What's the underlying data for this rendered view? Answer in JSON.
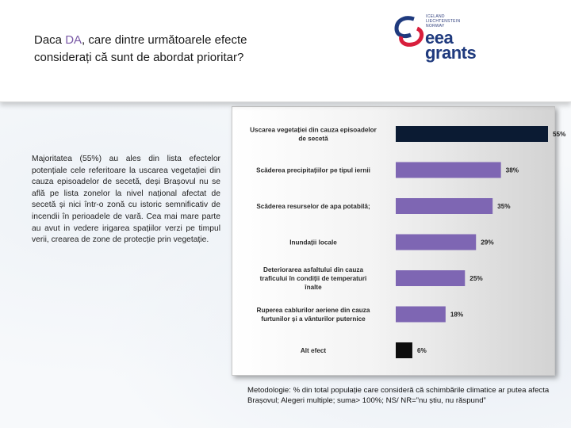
{
  "header": {
    "title_part1": "Daca ",
    "title_highlight": "DA",
    "title_part2": ", care dintre următoarele efecte considerați că sunt de abordat prioritar?",
    "logo": {
      "small_lines": [
        "ICELAND",
        "LIECHTENSTEIN",
        "NORWAY"
      ],
      "main_lines": [
        "eea",
        "grants"
      ],
      "icon": "eea-grants-logo"
    }
  },
  "summary": "Majoritatea (55%) au ales din lista efectelor potențiale cele referitoare la uscarea vegetației din cauza episoadelor de secetă, deși Brașovul nu se află pe lista zonelor la nivel național afectat de secetă și nici într-o zonă cu istoric semnificativ de incendii în perioadele de vară. Cea mai mare parte au avut in vedere irigarea spațiilor verzi pe timpul verii, crearea de zone de protecție prin vegetație.",
  "methodology": "Metodologie: % din total populație care consideră că schimbările climatice ar putea afecta Brașovul; Alegeri multiple; suma> 100%; NS/ NR=”nu știu, nu răspund”",
  "chart_data": {
    "type": "bar",
    "orientation": "horizontal",
    "title": "",
    "xlabel": "",
    "ylabel": "",
    "xlim": [
      0,
      55
    ],
    "grid": false,
    "categories": [
      "Uscarea vegetației din cauza episoadelor de secetă",
      "Scăderea precipitațiilor pe tipul iernii",
      "Scăderea resurselor de apa potabilă;",
      "Inundații locale",
      "Deteriorarea asfaltului din cauza traficului în condiții de temperaturi înalte",
      "Ruperea cablurilor aeriene din cauza furtunilor și a vânturilor puternice",
      "Alt efect"
    ],
    "category_lines": [
      [
        "Uscarea vegetației din cauza episoadelor",
        "de secetă"
      ],
      [
        "Scăderea precipitațiilor pe tipul iernii"
      ],
      [
        "Scăderea resurselor de apa potabilă;"
      ],
      [
        "Inundații locale"
      ],
      [
        "Deteriorarea asfaltului din cauza",
        "traficului în condiții de temperaturi",
        "înalte"
      ],
      [
        "Ruperea cablurilor aeriene din cauza",
        "furtunilor și a vânturilor puternice"
      ],
      [
        "Alt efect"
      ]
    ],
    "values": [
      55,
      38,
      35,
      29,
      25,
      18,
      6
    ],
    "value_labels": [
      "55%",
      "38%",
      "35%",
      "29%",
      "25%",
      "18%",
      "6%"
    ],
    "colors": [
      "#0b1b33",
      "#7e66b3",
      "#7e66b3",
      "#7e66b3",
      "#7e66b3",
      "#7e66b3",
      "#0d0d0d"
    ]
  }
}
